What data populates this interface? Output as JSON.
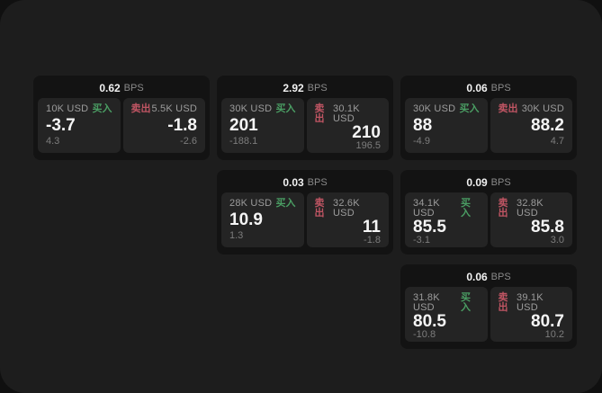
{
  "page": {
    "background_outer": "#101010",
    "background": "#1d1d1d",
    "card_background": "#131313",
    "panel_background": "#242424"
  },
  "labels": {
    "bps": "BPS",
    "buy": "买入",
    "sell": "卖出"
  },
  "colors": {
    "buy": "#4a9d63",
    "sell": "#c05563"
  },
  "cards": [
    {
      "bps": "0.62",
      "buy": {
        "amount": "10K USD",
        "price": "-3.7",
        "sub": "4.3"
      },
      "sell": {
        "amount": "5.5K USD",
        "price": "-1.8",
        "sub": "-2.6"
      }
    },
    {
      "bps": "2.92",
      "buy": {
        "amount": "30K USD",
        "price": "201",
        "sub": "-188.1"
      },
      "sell": {
        "amount": "30.1K USD",
        "price": "210",
        "sub": "196.5"
      }
    },
    {
      "bps": "0.06",
      "buy": {
        "amount": "30K USD",
        "price": "88",
        "sub": "-4.9"
      },
      "sell": {
        "amount": "30K USD",
        "price": "88.2",
        "sub": "4.7"
      }
    },
    {
      "bps": "0.03",
      "buy": {
        "amount": "28K USD",
        "price": "10.9",
        "sub": "1.3"
      },
      "sell": {
        "amount": "32.6K USD",
        "price": "11",
        "sub": "-1.8"
      }
    },
    {
      "bps": "0.09",
      "buy": {
        "amount": "34.1K USD",
        "price": "85.5",
        "sub": "-3.1"
      },
      "sell": {
        "amount": "32.8K USD",
        "price": "85.8",
        "sub": "3.0"
      }
    },
    {
      "bps": "0.06",
      "buy": {
        "amount": "31.8K USD",
        "price": "80.5",
        "sub": "-10.8"
      },
      "sell": {
        "amount": "39.1K USD",
        "price": "80.7",
        "sub": "10.2"
      }
    }
  ]
}
